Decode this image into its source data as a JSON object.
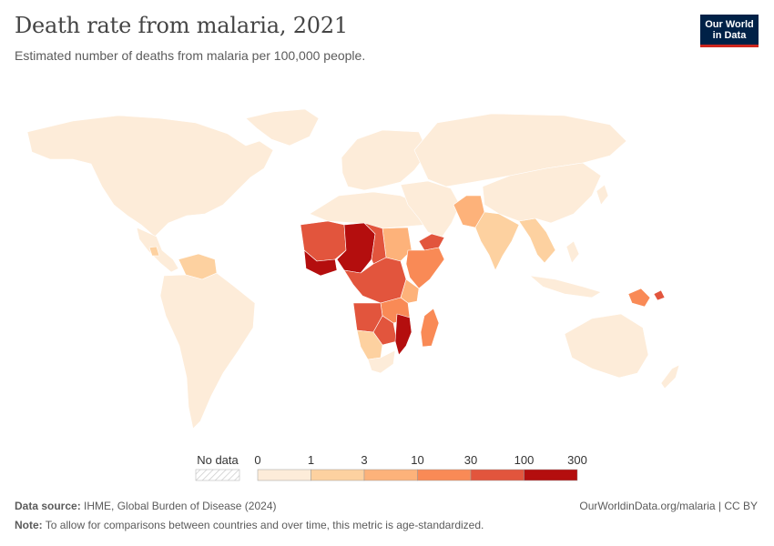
{
  "header": {
    "title": "Death rate from malaria, 2021",
    "subtitle": "Estimated number of deaths from malaria per 100,000 people.",
    "logo_line1": "Our World",
    "logo_line2": "in Data"
  },
  "legend": {
    "no_data_label": "No data",
    "ticks": [
      "0",
      "1",
      "3",
      "10",
      "30",
      "100",
      "300"
    ],
    "bins": [
      {
        "range": "0–1",
        "color": "#fdecd9"
      },
      {
        "range": "1–3",
        "color": "#fdd1a0"
      },
      {
        "range": "3–10",
        "color": "#fdb27a"
      },
      {
        "range": "10–30",
        "color": "#f98a56"
      },
      {
        "range": "30–100",
        "color": "#e2553d"
      },
      {
        "range": "100–300",
        "color": "#b40e0e"
      }
    ]
  },
  "map_data": {
    "type": "choropleth",
    "year": "2021",
    "indicator": "Death rate from malaria",
    "regions": [
      {
        "name": "North America",
        "bin": 0
      },
      {
        "name": "Central America",
        "bin": 0
      },
      {
        "name": "Guatemala",
        "bin": 1
      },
      {
        "name": "Venezuela & Guyana",
        "bin": 1
      },
      {
        "name": "South America",
        "bin": 0
      },
      {
        "name": "Europe",
        "bin": 0
      },
      {
        "name": "North Africa",
        "bin": 0
      },
      {
        "name": "Russia & Central Asia",
        "bin": 0
      },
      {
        "name": "Middle East",
        "bin": 0
      },
      {
        "name": "Yemen",
        "bin": 4
      },
      {
        "name": "Pakistan & Afghanistan",
        "bin": 2
      },
      {
        "name": "India",
        "bin": 1
      },
      {
        "name": "Myanmar & Southeast Asia",
        "bin": 1
      },
      {
        "name": "China & East Asia",
        "bin": 0
      },
      {
        "name": "Indonesia & Philippines",
        "bin": 0
      },
      {
        "name": "Australia",
        "bin": 0
      },
      {
        "name": "Papua New Guinea",
        "bin": 3
      },
      {
        "name": "Solomon Islands",
        "bin": 4
      },
      {
        "name": "Mauritania & Mali",
        "bin": 4
      },
      {
        "name": "Niger & Nigeria",
        "bin": 5
      },
      {
        "name": "Burkina Faso & Ghana",
        "bin": 5
      },
      {
        "name": "Sudan",
        "bin": 2
      },
      {
        "name": "Chad",
        "bin": 4
      },
      {
        "name": "Central Africa",
        "bin": 4
      },
      {
        "name": "Ethiopia & Somalia",
        "bin": 3
      },
      {
        "name": "Kenya",
        "bin": 2
      },
      {
        "name": "Tanzania",
        "bin": 3
      },
      {
        "name": "Angola",
        "bin": 4
      },
      {
        "name": "Zambia & Zimbabwe",
        "bin": 4
      },
      {
        "name": "Mozambique",
        "bin": 5
      },
      {
        "name": "Madagascar",
        "bin": 3
      },
      {
        "name": "Namibia & Botswana",
        "bin": 1
      },
      {
        "name": "South Africa",
        "bin": 0
      }
    ]
  },
  "footer": {
    "source_label": "Data source:",
    "source_text": "IHME, Global Burden of Disease (2024)",
    "note_label": "Note:",
    "note_text": "To allow for comparisons between countries and over time, this metric is age-standardized.",
    "url": "OurWorldinData.org/malaria | CC BY"
  }
}
